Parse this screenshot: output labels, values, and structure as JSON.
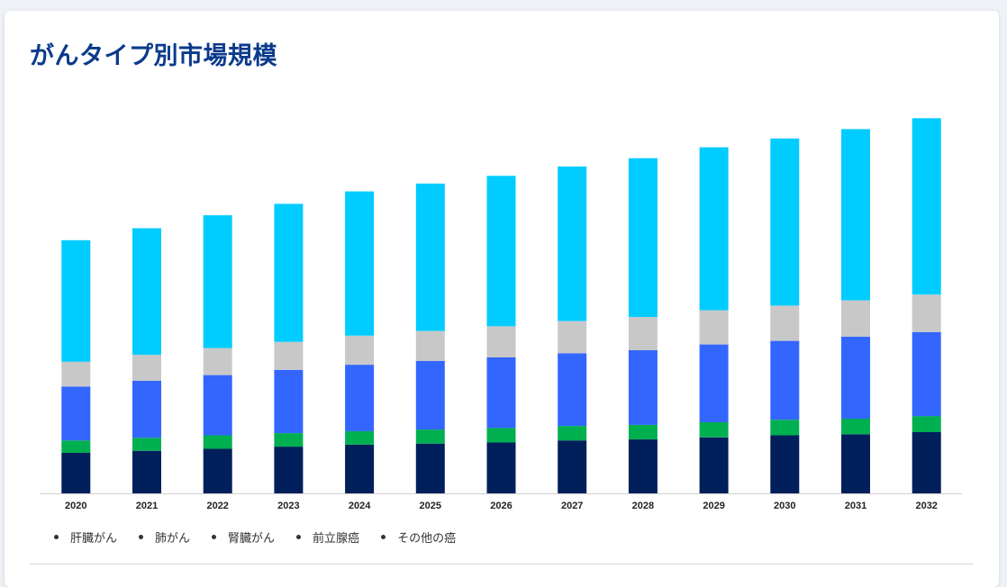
{
  "page": {
    "title": "がんタイプ別市場規模"
  },
  "chart_data": {
    "type": "bar",
    "stacked": true,
    "categories": [
      "2020",
      "2021",
      "2022",
      "2023",
      "2024",
      "2025",
      "2026",
      "2027",
      "2028",
      "2029",
      "2030",
      "2031",
      "2032"
    ],
    "series": [
      {
        "name": "肝臓がん",
        "color": "#001f5b",
        "values": [
          39,
          41,
          43,
          45,
          47,
          48,
          49,
          51,
          52,
          54,
          56,
          57,
          59
        ]
      },
      {
        "name": "肺がん",
        "color": "#00b050",
        "values": [
          12,
          12.5,
          13,
          13,
          13,
          13.5,
          14,
          14,
          14,
          14.5,
          15,
          15,
          15.5
        ]
      },
      {
        "name": "腎臓がん",
        "color": "#3366ff",
        "values": [
          52,
          55,
          58,
          61,
          64,
          66,
          68,
          70,
          72,
          75,
          76,
          79,
          81
        ]
      },
      {
        "name": "前立腺癌",
        "color": "#c8c8c8",
        "values": [
          24,
          25,
          26,
          27,
          28,
          29,
          30,
          31,
          32,
          33,
          34,
          35,
          36
        ]
      },
      {
        "name": "その他の癌",
        "color": "#00ccff",
        "values": [
          117,
          122,
          128,
          133,
          139,
          142,
          145,
          149,
          153,
          157,
          161,
          165,
          170
        ]
      }
    ],
    "ylim": [
      0,
      380
    ],
    "grid": false,
    "legend_position": "bottom-left"
  }
}
